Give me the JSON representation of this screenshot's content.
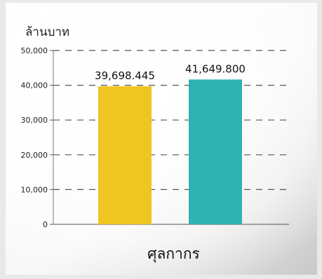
{
  "chart_data": {
    "type": "bar",
    "unit_label": "ล้านบาท",
    "xlabel": "ศุลกากร",
    "ylim": [
      0,
      50000
    ],
    "y_ticks": [
      0,
      10000,
      20000,
      30000,
      40000,
      50000
    ],
    "y_tick_labels": [
      "0",
      "10,000",
      "20,000",
      "30,000",
      "40,000",
      "50,000"
    ],
    "grid": true,
    "legend": "none",
    "series": [
      {
        "values": [
          39698.445,
          41649.8
        ],
        "colors": [
          "#eec521",
          "#2fb2b2"
        ],
        "data_labels": [
          "39,698.445",
          "41,649.800"
        ]
      }
    ]
  }
}
